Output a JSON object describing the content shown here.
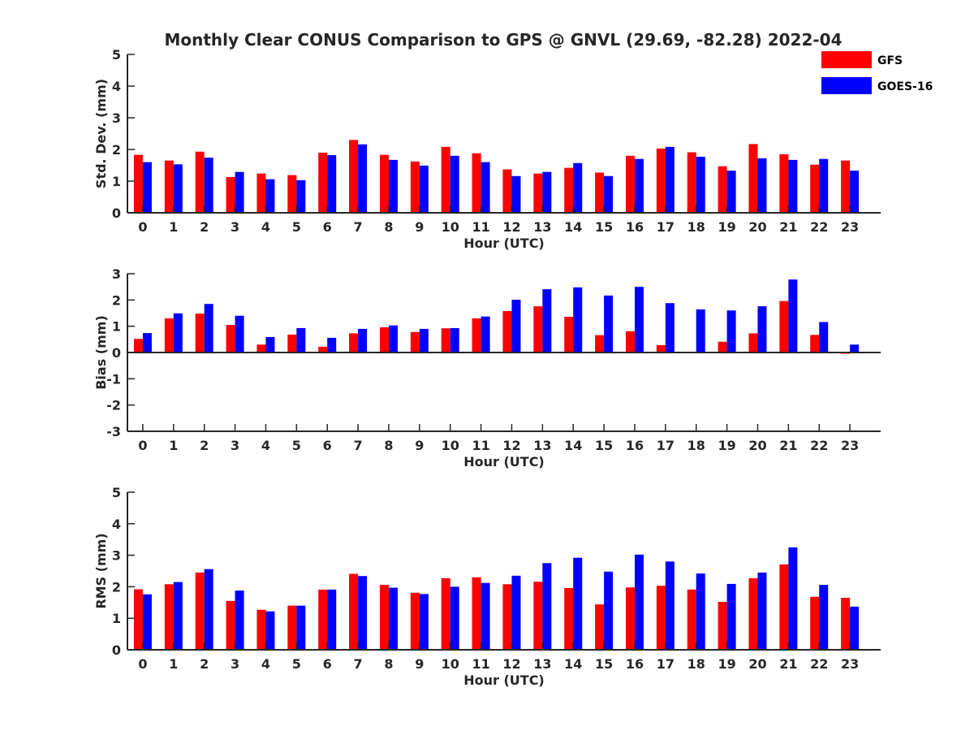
{
  "title": "Monthly Clear CONUS Comparison to GPS @ GNVL (29.69, -82.28) 2022-04",
  "legend": [
    {
      "name": "GFS",
      "color": "#ff0000"
    },
    {
      "name": "GOES-16",
      "color": "#0000ff"
    }
  ],
  "chart_data": [
    {
      "type": "bar",
      "ylabel": "Std. Dev. (mm)",
      "xlabel": "Hour (UTC)",
      "ylim": [
        0,
        5
      ],
      "yticks": [
        "0",
        "1",
        "2",
        "3",
        "4",
        "5"
      ],
      "categories": [
        "0",
        "1",
        "2",
        "3",
        "4",
        "5",
        "6",
        "7",
        "8",
        "9",
        "10",
        "11",
        "12",
        "13",
        "14",
        "15",
        "16",
        "17",
        "18",
        "19",
        "20",
        "21",
        "22",
        "23"
      ],
      "series": [
        {
          "name": "GFS",
          "color": "#ff0000",
          "values": [
            1.83,
            1.65,
            1.93,
            1.13,
            1.24,
            1.19,
            1.9,
            2.3,
            1.83,
            1.62,
            2.08,
            1.88,
            1.37,
            1.24,
            1.42,
            1.27,
            1.8,
            2.03,
            1.91,
            1.47,
            2.17,
            1.85,
            1.52,
            1.65
          ]
        },
        {
          "name": "GOES-16",
          "color": "#0000ff",
          "values": [
            1.6,
            1.53,
            1.74,
            1.29,
            1.06,
            1.03,
            1.82,
            2.16,
            1.67,
            1.49,
            1.8,
            1.6,
            1.16,
            1.29,
            1.57,
            1.16,
            1.7,
            2.08,
            1.77,
            1.33,
            1.72,
            1.67,
            1.7,
            1.33
          ]
        }
      ]
    },
    {
      "type": "bar",
      "ylabel": "Bias (mm)",
      "xlabel": "Hour (UTC)",
      "ylim": [
        -3,
        3
      ],
      "yticks": [
        "-3",
        "-2",
        "-1",
        "0",
        "1",
        "2",
        "3"
      ],
      "categories": [
        "0",
        "1",
        "2",
        "3",
        "4",
        "5",
        "6",
        "7",
        "8",
        "9",
        "10",
        "11",
        "12",
        "13",
        "14",
        "15",
        "16",
        "17",
        "18",
        "19",
        "20",
        "21",
        "22",
        "23"
      ],
      "series": [
        {
          "name": "GFS",
          "color": "#ff0000",
          "values": [
            0.52,
            1.3,
            1.48,
            1.05,
            0.3,
            0.68,
            0.22,
            0.73,
            0.96,
            0.78,
            0.92,
            1.3,
            1.58,
            1.76,
            1.36,
            0.66,
            0.81,
            0.28,
            0.0,
            0.41,
            0.73,
            1.96,
            0.67,
            -0.03
          ]
        },
        {
          "name": "GOES-16",
          "color": "#0000ff",
          "values": [
            0.74,
            1.49,
            1.85,
            1.4,
            0.59,
            0.93,
            0.56,
            0.9,
            1.03,
            0.9,
            0.93,
            1.37,
            2.01,
            2.41,
            2.48,
            2.17,
            2.5,
            1.88,
            1.64,
            1.6,
            1.76,
            2.78,
            1.16,
            0.3
          ]
        }
      ]
    },
    {
      "type": "bar",
      "ylabel": "RMS (mm)",
      "xlabel": "Hour (UTC)",
      "ylim": [
        0,
        5
      ],
      "yticks": [
        "0",
        "1",
        "2",
        "3",
        "4",
        "5"
      ],
      "categories": [
        "0",
        "1",
        "2",
        "3",
        "4",
        "5",
        "6",
        "7",
        "8",
        "9",
        "10",
        "11",
        "12",
        "13",
        "14",
        "15",
        "16",
        "17",
        "18",
        "19",
        "20",
        "21",
        "22",
        "23"
      ],
      "series": [
        {
          "name": "GFS",
          "color": "#ff0000",
          "values": [
            1.92,
            2.08,
            2.45,
            1.55,
            1.27,
            1.4,
            1.91,
            2.41,
            2.06,
            1.81,
            2.27,
            2.3,
            2.08,
            2.16,
            1.96,
            1.44,
            1.98,
            2.03,
            1.91,
            1.52,
            2.27,
            2.71,
            1.68,
            1.65
          ]
        },
        {
          "name": "GOES-16",
          "color": "#0000ff",
          "values": [
            1.76,
            2.15,
            2.56,
            1.88,
            1.22,
            1.4,
            1.91,
            2.34,
            1.97,
            1.77,
            2.0,
            2.12,
            2.35,
            2.75,
            2.92,
            2.48,
            3.02,
            2.8,
            2.42,
            2.09,
            2.45,
            3.25,
            2.06,
            1.37
          ]
        }
      ]
    }
  ]
}
